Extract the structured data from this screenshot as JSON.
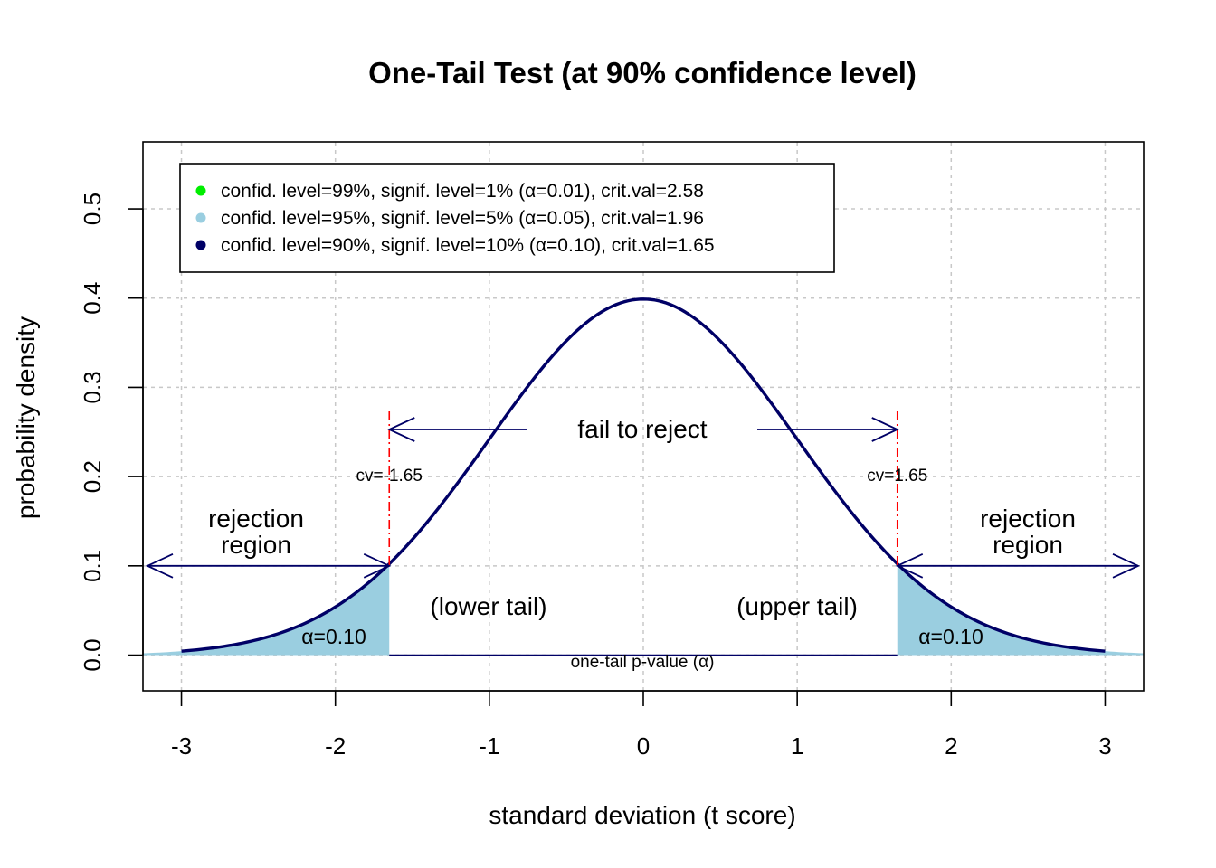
{
  "chart_data": {
    "type": "area",
    "title": "One-Tail Test (at 90% confidence level)",
    "xlabel": "standard deviation (t score)",
    "ylabel": "probability density",
    "xlim": [
      -3.25,
      3.25
    ],
    "ylim": [
      -0.04,
      0.575
    ],
    "x_ticks": [
      -3,
      -2,
      -1,
      0,
      1,
      2,
      3
    ],
    "x_tick_labels": [
      "-3",
      "-2",
      "-1",
      "0",
      "1",
      "2",
      "3"
    ],
    "y_ticks": [
      0.0,
      0.1,
      0.2,
      0.3,
      0.4,
      0.5
    ],
    "y_tick_labels": [
      "0.0",
      "0.1",
      "0.2",
      "0.3",
      "0.4",
      "0.5"
    ],
    "grid": true,
    "legend_position": "top-left",
    "legend": [
      {
        "label": "confid. level=99%, signif. level=1% (α=0.01), crit.val=2.58",
        "color": "#00ee00"
      },
      {
        "label": "confid. level=95%, signif. level=5% (α=0.05), crit.val=1.96",
        "color": "#9acee0"
      },
      {
        "label": "confid. level=90%, signif. level=10% (α=0.10), crit.val=1.65",
        "color": "#000066"
      }
    ],
    "curve": {
      "distribution": "standard normal",
      "x_range": [
        -3,
        3
      ],
      "color": "#000066"
    },
    "critical_values": [
      -1.65,
      1.65
    ],
    "critical_labels": [
      "cv=-1.65",
      "cv=1.65"
    ],
    "critical_density": 0.1,
    "shaded_tails": [
      {
        "from": -3.25,
        "to": -1.65,
        "label": "α=0.10",
        "color": "#9acee0"
      },
      {
        "from": 1.65,
        "to": 3.25,
        "label": "α=0.10",
        "color": "#9acee0"
      }
    ],
    "annotations": {
      "fail_to_reject": "fail to reject",
      "rejection_region_line1": "rejection",
      "rejection_region_line2": "region",
      "lower_tail": "(lower tail)",
      "upper_tail": "(upper tail)",
      "p_value": "one-tail p-value (α)"
    },
    "colors": {
      "curve": "#000066",
      "shade": "#9acee0",
      "critical": "#ff0000",
      "grid": "#c8c8c8"
    }
  }
}
